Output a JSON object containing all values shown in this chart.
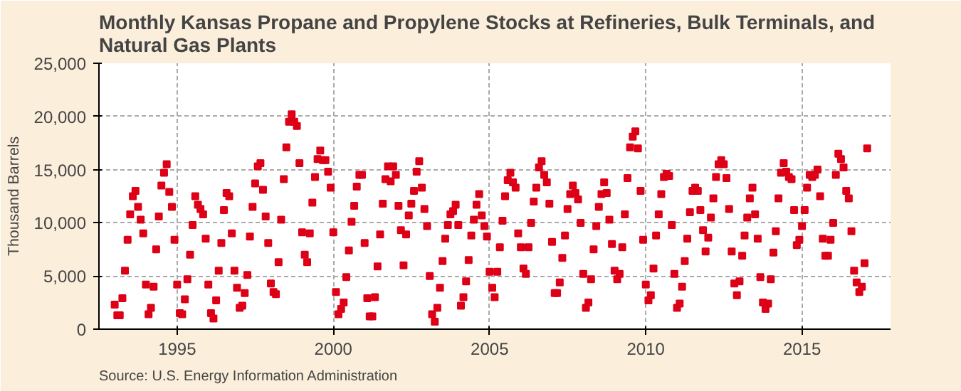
{
  "chart_data": {
    "type": "scatter",
    "title": "Monthly Kansas Propane and Propylene Stocks at Refineries, Bulk Terminals, and Natural Gas Plants",
    "ylabel": "Thousand Barrels",
    "annotations": [
      "Source: U.S. Energy Information Administration"
    ],
    "marker": "square",
    "grid": true,
    "xlim": [
      "1992-07",
      "2017-11"
    ],
    "xticks": [
      "1995",
      "2000",
      "2005",
      "2010",
      "2015"
    ],
    "ylim": [
      0,
      25000
    ],
    "yticks": [
      {
        "value": 0,
        "label": "0"
      },
      {
        "value": 5000,
        "label": "5,000"
      },
      {
        "value": 10000,
        "label": "10,000"
      },
      {
        "value": 15000,
        "label": "15,000"
      },
      {
        "value": 20000,
        "label": "20,000"
      },
      {
        "value": 25000,
        "label": "25,000"
      }
    ],
    "x": [
      "1993-01",
      "1993-02",
      "1993-03",
      "1993-04",
      "1993-05",
      "1993-06",
      "1993-07",
      "1993-08",
      "1993-09",
      "1993-10",
      "1993-11",
      "1993-12",
      "1994-01",
      "1994-02",
      "1994-03",
      "1994-04",
      "1994-05",
      "1994-06",
      "1994-07",
      "1994-08",
      "1994-09",
      "1994-10",
      "1994-11",
      "1994-12",
      "1995-01",
      "1995-02",
      "1995-03",
      "1995-04",
      "1995-05",
      "1995-06",
      "1995-07",
      "1995-08",
      "1995-09",
      "1995-10",
      "1995-11",
      "1995-12",
      "1996-01",
      "1996-02",
      "1996-03",
      "1996-04",
      "1996-05",
      "1996-06",
      "1996-07",
      "1996-08",
      "1996-09",
      "1996-10",
      "1996-11",
      "1996-12",
      "1997-01",
      "1997-02",
      "1997-03",
      "1997-04",
      "1997-05",
      "1997-06",
      "1997-07",
      "1997-08",
      "1997-09",
      "1997-10",
      "1997-11",
      "1997-12",
      "1998-01",
      "1998-02",
      "1998-03",
      "1998-04",
      "1998-05",
      "1998-06",
      "1998-07",
      "1998-08",
      "1998-09",
      "1998-10",
      "1998-11",
      "1998-12",
      "1999-01",
      "1999-02",
      "1999-03",
      "1999-04",
      "1999-05",
      "1999-06",
      "1999-07",
      "1999-08",
      "1999-09",
      "1999-10",
      "1999-11",
      "1999-12",
      "2000-01",
      "2000-02",
      "2000-03",
      "2000-04",
      "2000-05",
      "2000-06",
      "2000-07",
      "2000-08",
      "2000-09",
      "2000-10",
      "2000-11",
      "2000-12",
      "2001-01",
      "2001-02",
      "2001-03",
      "2001-04",
      "2001-05",
      "2001-06",
      "2001-07",
      "2001-08",
      "2001-09",
      "2001-10",
      "2001-11",
      "2001-12",
      "2002-01",
      "2002-02",
      "2002-03",
      "2002-04",
      "2002-05",
      "2002-06",
      "2002-07",
      "2002-08",
      "2002-09",
      "2002-10",
      "2002-11",
      "2002-12",
      "2003-01",
      "2003-02",
      "2003-03",
      "2003-04",
      "2003-05",
      "2003-06",
      "2003-07",
      "2003-08",
      "2003-09",
      "2003-10",
      "2003-11",
      "2003-12",
      "2004-01",
      "2004-02",
      "2004-03",
      "2004-04",
      "2004-05",
      "2004-06",
      "2004-07",
      "2004-08",
      "2004-09",
      "2004-10",
      "2004-11",
      "2004-12",
      "2005-01",
      "2005-02",
      "2005-03",
      "2005-04",
      "2005-05",
      "2005-06",
      "2005-07",
      "2005-08",
      "2005-09",
      "2005-10",
      "2005-11",
      "2005-12",
      "2006-01",
      "2006-02",
      "2006-03",
      "2006-04",
      "2006-05",
      "2006-06",
      "2006-07",
      "2006-08",
      "2006-09",
      "2006-10",
      "2006-11",
      "2006-12",
      "2007-01",
      "2007-02",
      "2007-03",
      "2007-04",
      "2007-05",
      "2007-06",
      "2007-07",
      "2007-08",
      "2007-09",
      "2007-10",
      "2007-11",
      "2007-12",
      "2008-01",
      "2008-02",
      "2008-03",
      "2008-04",
      "2008-05",
      "2008-06",
      "2008-07",
      "2008-08",
      "2008-09",
      "2008-10",
      "2008-11",
      "2008-12",
      "2009-01",
      "2009-02",
      "2009-03",
      "2009-04",
      "2009-05",
      "2009-06",
      "2009-07",
      "2009-08",
      "2009-09",
      "2009-10",
      "2009-11",
      "2009-12",
      "2010-01",
      "2010-02",
      "2010-03",
      "2010-04",
      "2010-05",
      "2010-06",
      "2010-07",
      "2010-08",
      "2010-09",
      "2010-10",
      "2010-11",
      "2010-12",
      "2011-01",
      "2011-02",
      "2011-03",
      "2011-04",
      "2011-05",
      "2011-06",
      "2011-07",
      "2011-08",
      "2011-09",
      "2011-10",
      "2011-11",
      "2011-12",
      "2012-01",
      "2012-02",
      "2012-03",
      "2012-04",
      "2012-05",
      "2012-06",
      "2012-07",
      "2012-08",
      "2012-09",
      "2012-10",
      "2012-11",
      "2012-12",
      "2013-01",
      "2013-02",
      "2013-03",
      "2013-04",
      "2013-05",
      "2013-06",
      "2013-07",
      "2013-08",
      "2013-09",
      "2013-10",
      "2013-11",
      "2013-12",
      "2014-01",
      "2014-02",
      "2014-03",
      "2014-04",
      "2014-05",
      "2014-06",
      "2014-07",
      "2014-08",
      "2014-09",
      "2014-10",
      "2014-11",
      "2014-12",
      "2015-01",
      "2015-02",
      "2015-03",
      "2015-04",
      "2015-05",
      "2015-06",
      "2015-07",
      "2015-08",
      "2015-09",
      "2015-10",
      "2015-11",
      "2015-12",
      "2016-01",
      "2016-02",
      "2016-03",
      "2016-04",
      "2016-05",
      "2016-06",
      "2016-07",
      "2016-08",
      "2016-09",
      "2016-10",
      "2016-11",
      "2016-12",
      "2017-01",
      "2017-02"
    ],
    "series": [
      {
        "color": "#dd0016",
        "values": [
          2300,
          1300,
          1300,
          2900,
          5500,
          8400,
          10800,
          12500,
          13000,
          11500,
          10300,
          9000,
          4200,
          1400,
          2000,
          4000,
          7500,
          10600,
          13500,
          14700,
          15500,
          12900,
          11500,
          8400,
          4200,
          1500,
          1400,
          2800,
          4700,
          7000,
          9800,
          12500,
          11700,
          11300,
          10800,
          8500,
          4200,
          1500,
          1000,
          2700,
          5500,
          8100,
          11200,
          12800,
          12500,
          9000,
          5500,
          3900,
          2000,
          2200,
          3400,
          5100,
          8700,
          11500,
          13700,
          15300,
          15600,
          13100,
          10600,
          8100,
          4300,
          3500,
          3300,
          6300,
          10300,
          14100,
          17100,
          19500,
          20200,
          19500,
          19100,
          15600,
          9100,
          7000,
          6300,
          9000,
          11900,
          14300,
          16000,
          16800,
          15900,
          15900,
          14800,
          13300,
          9100,
          3500,
          1400,
          1900,
          2500,
          4900,
          7400,
          10100,
          11600,
          13400,
          14500,
          14500,
          8100,
          2900,
          1200,
          1200,
          3000,
          5900,
          8900,
          11800,
          14100,
          15300,
          13900,
          15300,
          14500,
          11600,
          9300,
          6000,
          8900,
          10700,
          11800,
          13000,
          14800,
          15800,
          13300,
          11300,
          9700,
          5000,
          1400,
          700,
          2000,
          3900,
          6400,
          8500,
          9800,
          10800,
          11100,
          11700,
          9800,
          2200,
          3000,
          4500,
          6500,
          8800,
          10300,
          11700,
          12700,
          10700,
          9700,
          8700,
          5400,
          3900,
          3000,
          5400,
          7700,
          10200,
          12500,
          14000,
          14700,
          13800,
          13300,
          9000,
          7700,
          5700,
          5200,
          7700,
          10000,
          12000,
          13300,
          15200,
          15800,
          14500,
          13800,
          11800,
          8200,
          3400,
          3400,
          4400,
          6700,
          8800,
          11300,
          12700,
          13500,
          12800,
          12200,
          10000,
          5200,
          2000,
          2500,
          4700,
          7500,
          9700,
          11500,
          12700,
          13800,
          12800,
          10300,
          8000,
          5500,
          4700,
          5200,
          7700,
          10800,
          14200,
          17100,
          18100,
          18600,
          17000,
          13000,
          8400,
          4200,
          2700,
          3200,
          5700,
          8800,
          10800,
          12700,
          14300,
          14600,
          14400,
          9800,
          5200,
          2000,
          2400,
          4000,
          6400,
          8500,
          11000,
          13000,
          13300,
          13000,
          11200,
          9300,
          7300,
          8600,
          10500,
          12300,
          14300,
          15500,
          15900,
          15500,
          14200,
          11300,
          7300,
          4300,
          3200,
          4500,
          6900,
          8800,
          10500,
          12300,
          13300,
          10800,
          8500,
          4900,
          2500,
          1900,
          2400,
          4700,
          7200,
          9200,
          12300,
          14700,
          15600,
          14800,
          14300,
          14100,
          11200,
          7900,
          8400,
          9700,
          11200,
          13300,
          14500,
          14300,
          14500,
          15000,
          12500,
          8500,
          6900,
          6900,
          8400,
          10000,
          14500,
          16500,
          16000,
          15200,
          13000,
          12300,
          9200,
          5500,
          4400,
          3500,
          4000,
          6200,
          17000
        ]
      }
    ]
  }
}
